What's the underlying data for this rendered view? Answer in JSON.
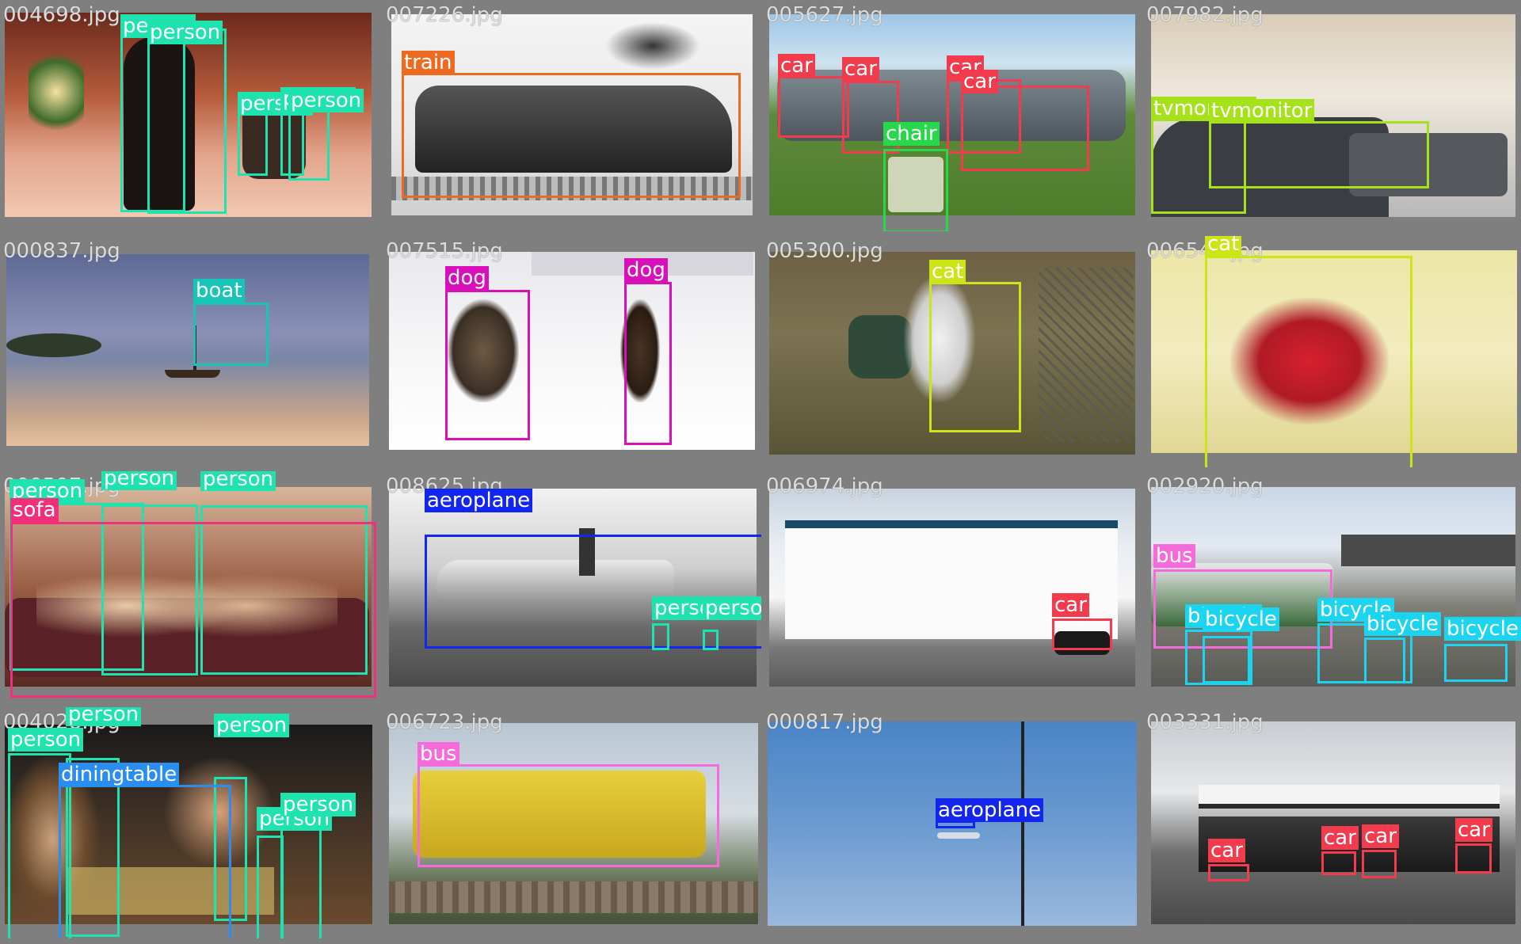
{
  "colors": {
    "person": "#1ee3ae",
    "train": "#ee6a21",
    "car": "#f23b4d",
    "chair": "#26d84a",
    "tvmonitor": "#a6e21a",
    "boat": "#17c4b5",
    "dog": "#d90fb9",
    "cat": "#cce516",
    "sofa": "#f0307a",
    "aeroplane": "#1326f0",
    "bus": "#f56bdc",
    "bicycle": "#1bd4f0",
    "diningtable": "#2a8df0"
  },
  "tiles": [
    {
      "filename": "004698.jpg",
      "scene": "indoor-dance",
      "detections": [
        {
          "label": "person"
        },
        {
          "label": "person"
        },
        {
          "label": "person"
        },
        {
          "label": "person"
        },
        {
          "label": "person"
        }
      ]
    },
    {
      "filename": "007226.jpg",
      "scene": "train",
      "detections": [
        {
          "label": "train"
        }
      ]
    },
    {
      "filename": "005627.jpg",
      "scene": "parking",
      "detections": [
        {
          "label": "car"
        },
        {
          "label": "car"
        },
        {
          "label": "car"
        },
        {
          "label": "car"
        },
        {
          "label": "chair"
        }
      ]
    },
    {
      "filename": "007982.jpg",
      "scene": "office",
      "detections": [
        {
          "label": "tvmonitor"
        },
        {
          "label": "tvmonitor"
        }
      ]
    },
    {
      "filename": "000837.jpg",
      "scene": "sea",
      "detections": [
        {
          "label": "boat"
        }
      ]
    },
    {
      "filename": "007515.jpg",
      "scene": "snow",
      "detections": [
        {
          "label": "dog"
        },
        {
          "label": "dog"
        }
      ]
    },
    {
      "filename": "005300.jpg",
      "scene": "grass",
      "detections": [
        {
          "label": "cat"
        }
      ]
    },
    {
      "filename": "006548.jpg",
      "scene": "sofa-cat",
      "detections": [
        {
          "label": "cat"
        }
      ]
    },
    {
      "filename": "000507.jpg",
      "scene": "living-room",
      "detections": [
        {
          "label": "person"
        },
        {
          "label": "person"
        },
        {
          "label": "person"
        },
        {
          "label": "sofa"
        }
      ]
    },
    {
      "filename": "008625.jpg",
      "scene": "airfield",
      "detections": [
        {
          "label": "aeroplane"
        },
        {
          "label": "person"
        },
        {
          "label": "person"
        }
      ]
    },
    {
      "filename": "006974.jpg",
      "scene": "street-building",
      "detections": [
        {
          "label": "car"
        }
      ]
    },
    {
      "filename": "002920.jpg",
      "scene": "station",
      "detections": [
        {
          "label": "bus"
        },
        {
          "label": "bicycle"
        },
        {
          "label": "bicycle"
        },
        {
          "label": "bicycle"
        },
        {
          "label": "bicycle"
        },
        {
          "label": "bicycle"
        }
      ]
    },
    {
      "filename": "004028.jpg",
      "scene": "restaurant",
      "detections": [
        {
          "label": "person"
        },
        {
          "label": "person"
        },
        {
          "label": "person"
        },
        {
          "label": "person"
        },
        {
          "label": "person"
        },
        {
          "label": "diningtable"
        }
      ]
    },
    {
      "filename": "006723.jpg",
      "scene": "yellow-bus",
      "detections": [
        {
          "label": "bus"
        }
      ]
    },
    {
      "filename": "000817.jpg",
      "scene": "sky",
      "detections": [
        {
          "label": "aeroplane"
        }
      ]
    },
    {
      "filename": "003331.jpg",
      "scene": "gas-station",
      "detections": [
        {
          "label": "car"
        },
        {
          "label": "car"
        },
        {
          "label": "car"
        },
        {
          "label": "car"
        }
      ]
    }
  ]
}
